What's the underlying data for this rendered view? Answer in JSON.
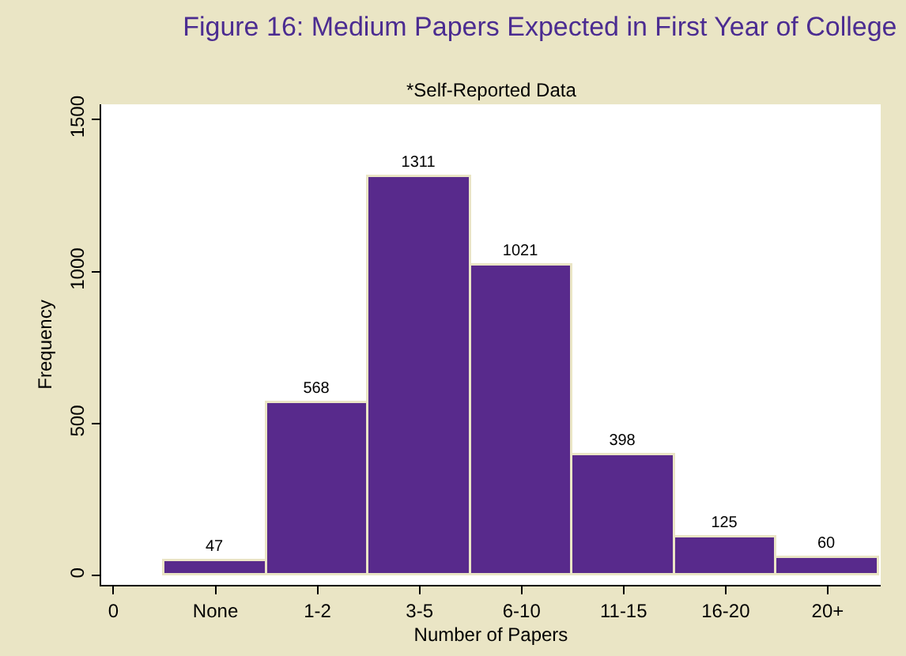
{
  "chart_data": {
    "type": "bar",
    "title": "Figure 16: Medium Papers Expected in First Year of College",
    "subtitle": "*Self-Reported Data",
    "xlabel": "Number of Papers",
    "ylabel": "Frequency",
    "categories": [
      "0",
      "None",
      "1-2",
      "3-5",
      "6-10",
      "11-15",
      "16-20",
      "20+"
    ],
    "values": [
      null,
      47,
      568,
      1311,
      1021,
      398,
      125,
      60
    ],
    "color": "#582a8c",
    "ylim": [
      -30,
      1550
    ],
    "yticks": [
      0,
      500,
      1000,
      1500
    ],
    "data_labels": true,
    "grid": false,
    "legend": false
  }
}
